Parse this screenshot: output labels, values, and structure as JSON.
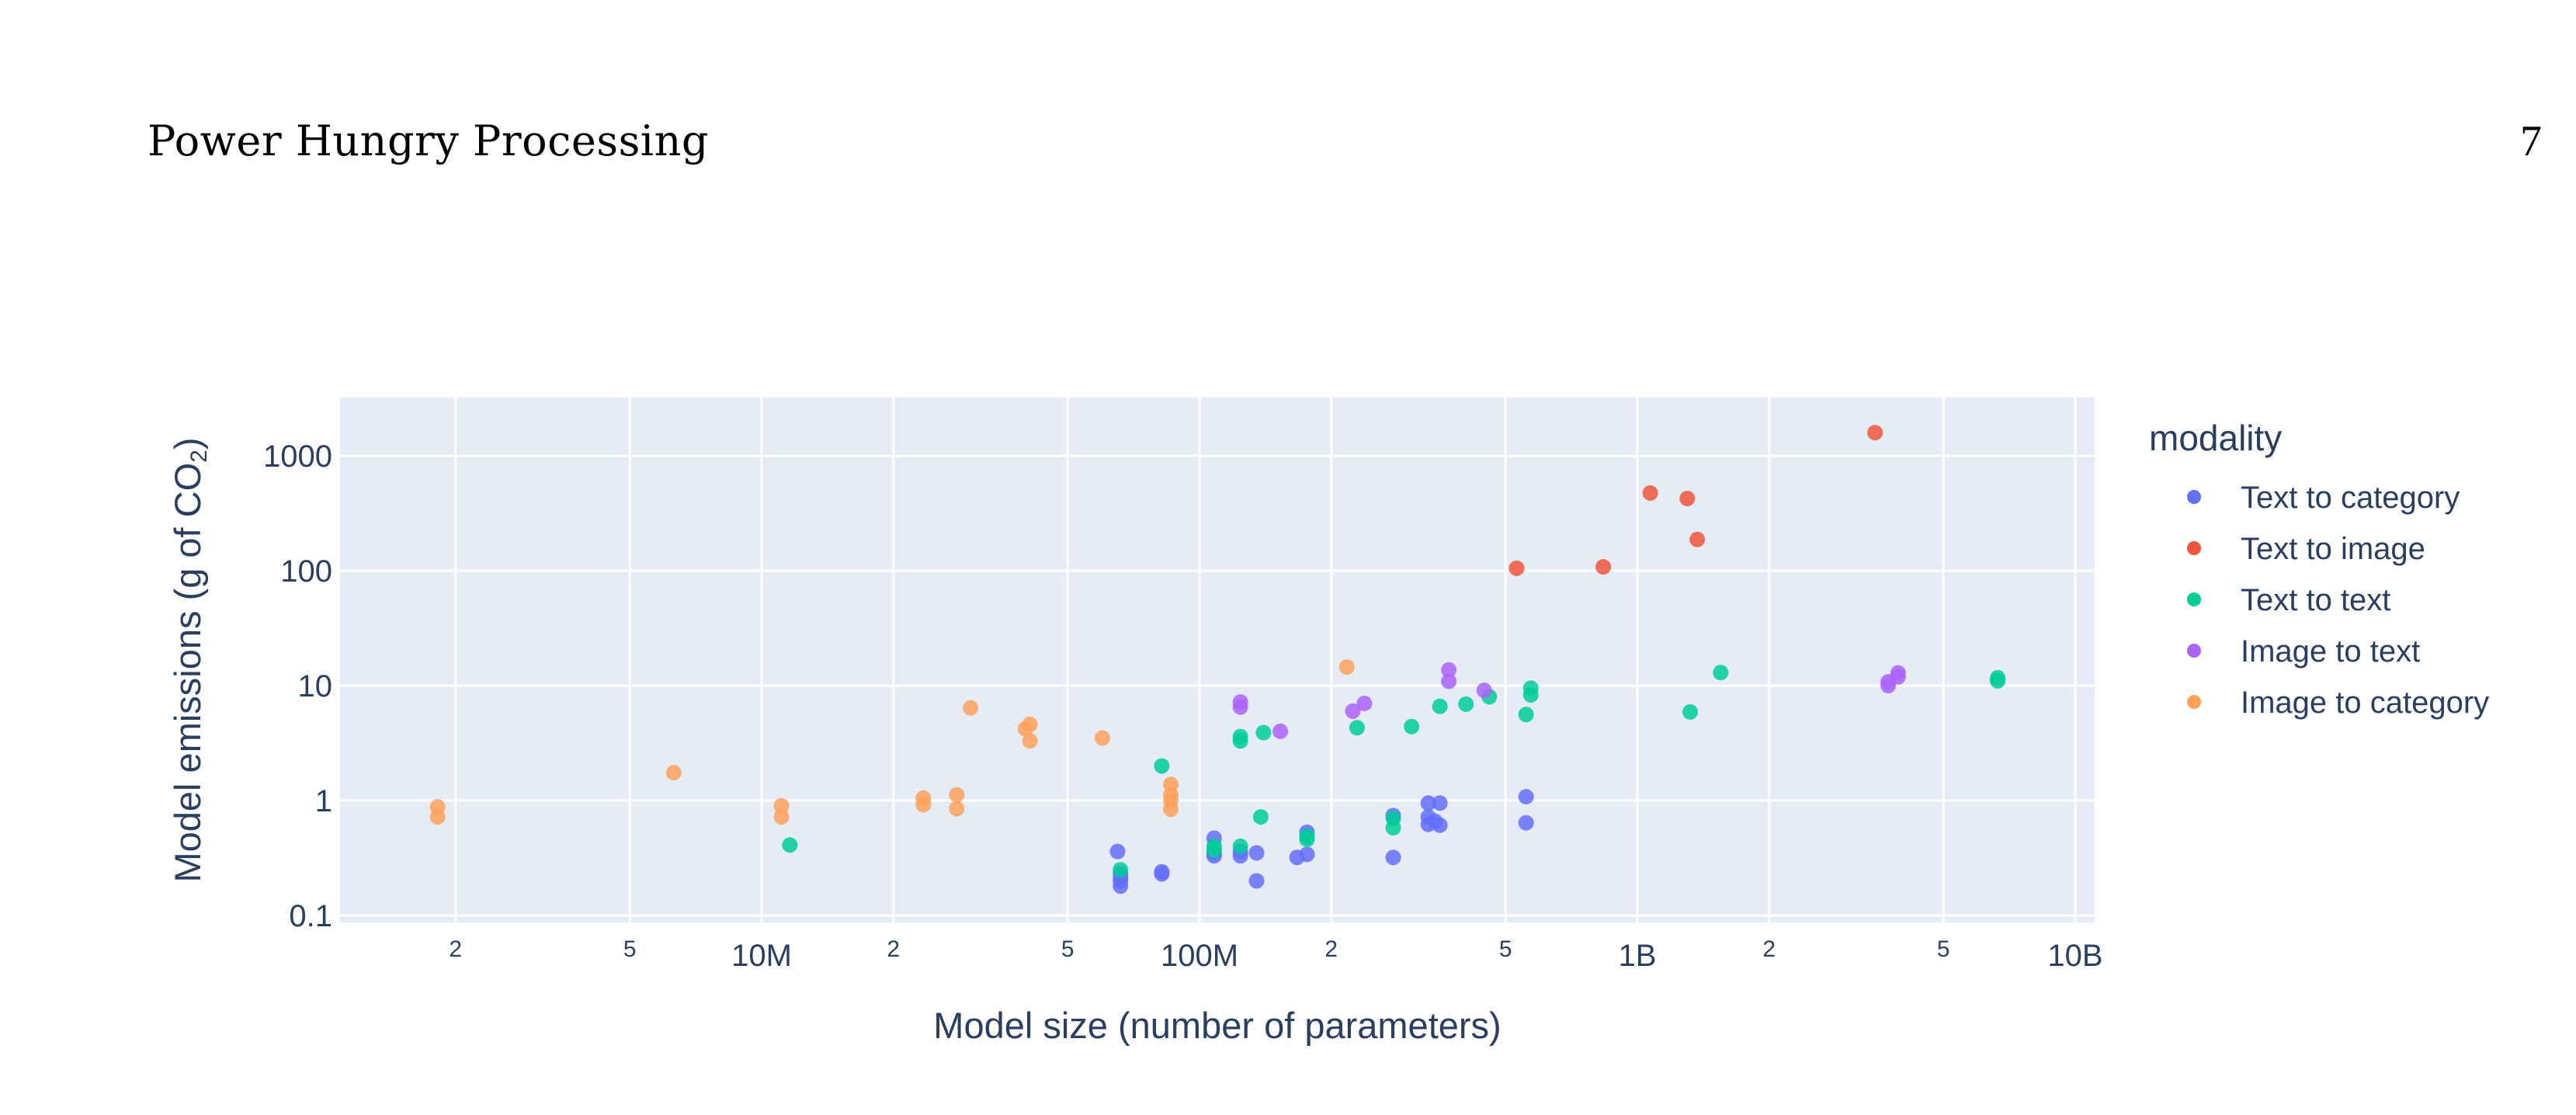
{
  "header": {
    "running_title": "Power Hungry Processing",
    "page_number": "7"
  },
  "colors": {
    "plot_background": "#e5ecf6",
    "grid": "#ffffff",
    "axis_text": "#2a3f5f",
    "Text to category": "#636efa",
    "Text to image": "#ef553b",
    "Text to text": "#00cc96",
    "Image to text": "#ab63fa",
    "Image to category": "#ffa15a"
  },
  "chart_data": {
    "type": "scatter",
    "title": "",
    "xlabel": "Model size (number of parameters)",
    "ylabel": "Model emissions (g of CO2)",
    "ylabel_parts": {
      "main": "Model emissions (g of CO",
      "sub": "2",
      "end": ")"
    },
    "x_scale": "log",
    "y_scale": "log",
    "xlim": [
      1090000,
      12000000000
    ],
    "ylim": [
      0.095,
      3000
    ],
    "x_ticks": [
      {
        "value": 2000000,
        "label": "2",
        "major": false
      },
      {
        "value": 5000000,
        "label": "5",
        "major": false
      },
      {
        "value": 10000000,
        "label": "10M",
        "major": true
      },
      {
        "value": 20000000,
        "label": "2",
        "major": false
      },
      {
        "value": 50000000,
        "label": "5",
        "major": false
      },
      {
        "value": 100000000,
        "label": "100M",
        "major": true
      },
      {
        "value": 200000000,
        "label": "2",
        "major": false
      },
      {
        "value": 500000000,
        "label": "5",
        "major": false
      },
      {
        "value": 1000000000,
        "label": "1B",
        "major": true
      },
      {
        "value": 2000000000,
        "label": "2",
        "major": false
      },
      {
        "value": 5000000000,
        "label": "5",
        "major": false
      },
      {
        "value": 10000000000,
        "label": "10B",
        "major": true
      }
    ],
    "y_ticks": [
      {
        "value": 0.1,
        "label": "0.1"
      },
      {
        "value": 1,
        "label": "1"
      },
      {
        "value": 10,
        "label": "10"
      },
      {
        "value": 100,
        "label": "100"
      },
      {
        "value": 1000,
        "label": "1000"
      }
    ],
    "grid": true,
    "legend": {
      "title": "modality",
      "position": "right"
    },
    "series": [
      {
        "name": "Text to category",
        "color": "#636efa",
        "points": [
          [
            65000000,
            0.36
          ],
          [
            66000000,
            0.23
          ],
          [
            66000000,
            0.2
          ],
          [
            66000000,
            0.18
          ],
          [
            66000000,
            0.21
          ],
          [
            82000000,
            0.23
          ],
          [
            82000000,
            0.24
          ],
          [
            108000000,
            0.47
          ],
          [
            108000000,
            0.33
          ],
          [
            108000000,
            0.35
          ],
          [
            124000000,
            0.33
          ],
          [
            124000000,
            0.36
          ],
          [
            135000000,
            0.35
          ],
          [
            135000000,
            0.2
          ],
          [
            167000000,
            0.32
          ],
          [
            176000000,
            0.34
          ],
          [
            176000000,
            0.53
          ],
          [
            277000000,
            0.74
          ],
          [
            277000000,
            0.32
          ],
          [
            333000000,
            0.95
          ],
          [
            354000000,
            0.95
          ],
          [
            333000000,
            0.72
          ],
          [
            333000000,
            0.62
          ],
          [
            354000000,
            0.61
          ],
          [
            345000000,
            0.66
          ],
          [
            557000000,
            1.08
          ],
          [
            557000000,
            0.64
          ]
        ]
      },
      {
        "name": "Text to image",
        "color": "#ef553b",
        "points": [
          [
            530000000,
            105
          ],
          [
            836000000,
            108
          ],
          [
            1070000000,
            474
          ],
          [
            1300000000,
            425
          ],
          [
            1370000000,
            187
          ],
          [
            3490000000,
            1590
          ]
        ]
      },
      {
        "name": "Text to text",
        "color": "#00cc96",
        "points": [
          [
            11600000,
            0.41
          ],
          [
            66000000,
            0.25
          ],
          [
            82000000,
            2.0
          ],
          [
            108000000,
            0.4
          ],
          [
            108000000,
            0.37
          ],
          [
            124000000,
            0.4
          ],
          [
            124000000,
            3.6
          ],
          [
            124000000,
            3.3
          ],
          [
            138000000,
            0.72
          ],
          [
            140000000,
            3.9
          ],
          [
            176000000,
            0.49
          ],
          [
            176000000,
            0.46
          ],
          [
            229000000,
            4.3
          ],
          [
            277000000,
            0.7
          ],
          [
            277000000,
            0.58
          ],
          [
            305000000,
            4.4
          ],
          [
            354000000,
            6.6
          ],
          [
            406000000,
            6.9
          ],
          [
            459000000,
            8.0
          ],
          [
            557000000,
            5.6
          ],
          [
            571000000,
            9.5
          ],
          [
            571000000,
            8.3
          ],
          [
            1320000000,
            5.9
          ],
          [
            1550000000,
            13.0
          ],
          [
            6650000000,
            11.7
          ],
          [
            6650000000,
            11.0
          ]
        ]
      },
      {
        "name": "Image to text",
        "color": "#ab63fa",
        "points": [
          [
            124000000,
            6.5
          ],
          [
            124000000,
            7.2
          ],
          [
            153000000,
            4.0
          ],
          [
            224000000,
            6.0
          ],
          [
            238000000,
            7.0
          ],
          [
            371000000,
            13.7
          ],
          [
            371000000,
            10.9
          ],
          [
            447000000,
            9.1
          ],
          [
            3740000000,
            10.8
          ],
          [
            3740000000,
            10.0
          ],
          [
            3940000000,
            12.9
          ],
          [
            3940000000,
            11.9
          ]
        ]
      },
      {
        "name": "Image to category",
        "color": "#ffa15a",
        "points": [
          [
            1820000,
            0.88
          ],
          [
            1820000,
            0.72
          ],
          [
            6300000,
            1.75
          ],
          [
            11100000,
            0.9
          ],
          [
            11100000,
            0.72
          ],
          [
            23400000,
            1.05
          ],
          [
            23400000,
            0.92
          ],
          [
            27900000,
            1.12
          ],
          [
            27900000,
            0.85
          ],
          [
            30000000,
            6.4
          ],
          [
            40000000,
            4.2
          ],
          [
            41000000,
            4.6
          ],
          [
            41000000,
            3.3
          ],
          [
            60000000,
            3.5
          ],
          [
            86000000,
            1.38
          ],
          [
            86000000,
            1.12
          ],
          [
            86000000,
            1.0
          ],
          [
            86000000,
            0.84
          ],
          [
            217000000,
            14.5
          ]
        ]
      }
    ]
  }
}
